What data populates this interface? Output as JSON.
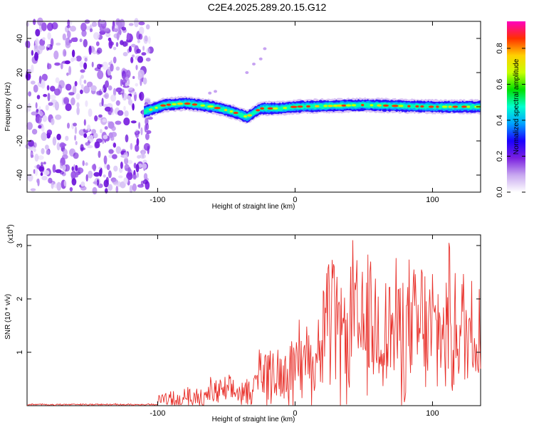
{
  "title": "C2E4.2025.289.20.15.G12",
  "chart_data": [
    {
      "type": "heatmap",
      "xlabel": "Height of straight line (km)",
      "ylabel": "Frequency (Hz)",
      "xlim": [
        -195,
        135
      ],
      "ylim": [
        -50,
        50
      ],
      "xticks": [
        -100,
        0,
        100
      ],
      "yticks": [
        -40,
        -20,
        0,
        20,
        40
      ],
      "noise_region_x": [
        -195,
        -108
      ],
      "ridge": {
        "description_points_x": [
          -110,
          -95,
          -80,
          -60,
          -45,
          -35,
          -25,
          -10,
          0,
          50,
          100,
          135
        ],
        "description_points_y": [
          -3,
          1,
          2,
          0,
          -3,
          -6,
          -1,
          -1,
          0,
          1,
          0,
          0
        ]
      },
      "colorbar": {
        "label": "Normalized spectral amplitude",
        "ticks": [
          0.0,
          0.2,
          0.4,
          0.6,
          0.8
        ],
        "tick_labels": [
          "0.0",
          "0.2",
          "0.4",
          "0.6",
          "0.8"
        ],
        "range": [
          0,
          0.95
        ],
        "colormap": [
          "#ffffff",
          "#c8a8f0",
          "#7a1fe0",
          "#1a00ff",
          "#00a0ff",
          "#00ffd0",
          "#00e000",
          "#c8ff00",
          "#ffd000",
          "#ff3000",
          "#ff00c0"
        ]
      }
    },
    {
      "type": "line",
      "xlabel": "Height of straight line (km)",
      "ylabel": "SNR (10 * v/v)",
      "scale_label": "(x10",
      "scale_exp": "4",
      "scale_close": ")",
      "xlim": [
        -195,
        135
      ],
      "ylim": [
        0,
        3.2
      ],
      "xticks": [
        -100,
        0,
        100
      ],
      "yticks": [
        1,
        2,
        3
      ],
      "series": [
        {
          "name": "SNR",
          "color": "#e8302a",
          "segments": [
            {
              "x": [
                -195,
                -100
              ],
              "mean": 0.02,
              "amp": 0.02
            },
            {
              "x": [
                -100,
                -65
              ],
              "mean": 0.12,
              "amp": 0.25
            },
            {
              "x": [
                -65,
                -30
              ],
              "mean": 0.25,
              "amp": 0.35
            },
            {
              "x": [
                -30,
                0
              ],
              "mean": 0.6,
              "amp": 0.7
            },
            {
              "x": [
                0,
                20
              ],
              "mean": 0.9,
              "amp": 1.0
            },
            {
              "x": [
                20,
                135
              ],
              "mean": 1.4,
              "amp": 1.6
            }
          ],
          "peaks": [
            {
              "x": 42,
              "y": 3.1
            },
            {
              "x": 28,
              "y": 2.65
            },
            {
              "x": 112,
              "y": 3.05
            },
            {
              "x": 55,
              "y": 2.7
            },
            {
              "x": 92,
              "y": 2.55
            }
          ]
        }
      ]
    }
  ]
}
